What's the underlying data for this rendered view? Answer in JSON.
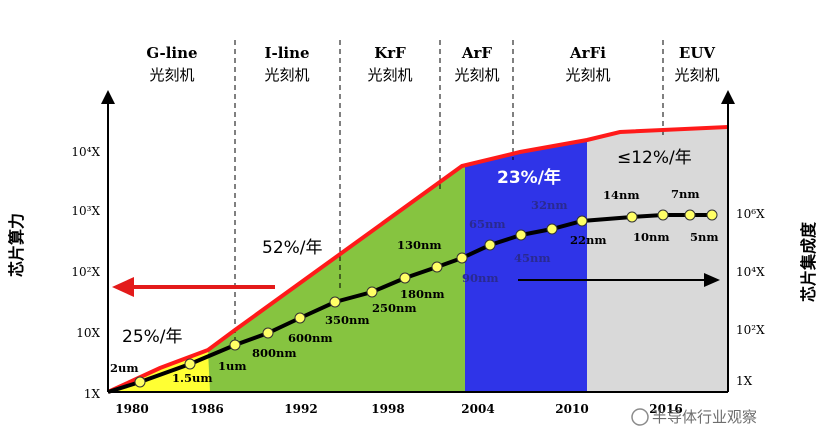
{
  "chart_data": {
    "type": "line",
    "eras": [
      {
        "name": "G-line",
        "sub": "光刻机"
      },
      {
        "name": "I-line",
        "sub": "光刻机"
      },
      {
        "name": "KrF",
        "sub": "光刻机"
      },
      {
        "name": "ArF",
        "sub": "光刻机"
      },
      {
        "name": "ArFi",
        "sub": "光刻机"
      },
      {
        "name": "EUV",
        "sub": "光刻机"
      }
    ],
    "x_ticks": [
      "1980",
      "1986",
      "1992",
      "1998",
      "2004",
      "2010",
      "2016"
    ],
    "left_y_ticks": [
      "1X",
      "10X",
      "10²X",
      "10³X",
      "10⁴X"
    ],
    "right_y_ticks": [
      "1X",
      "10²X",
      "10⁴X",
      "10⁶X"
    ],
    "left_ylabel": "芯片算力",
    "right_ylabel": "芯片集成度",
    "growth_rates": [
      "25%/年",
      "52%/年",
      "23%/年",
      "≤12%/年"
    ],
    "performance_curve": {
      "x": [
        1980,
        1986,
        2004,
        2010,
        2016,
        2018
      ],
      "log10_y": [
        0,
        0.3,
        3.35,
        3.6,
        3.85,
        3.9
      ]
    },
    "process_nodes": [
      {
        "label": "2um",
        "year": 1982,
        "log10_density": 0.12
      },
      {
        "label": "1.5um",
        "year": 1985,
        "log10_density": 0.3
      },
      {
        "label": "1um",
        "year": 1987,
        "log10_density": 0.55
      },
      {
        "label": "800nm",
        "year": 1989,
        "log10_density": 0.75
      },
      {
        "label": "600nm",
        "year": 1991,
        "log10_density": 0.95
      },
      {
        "label": "350nm",
        "year": 1994,
        "log10_density": 1.3
      },
      {
        "label": "250nm",
        "year": 1996,
        "log10_density": 1.5
      },
      {
        "label": "180nm",
        "year": 1998,
        "log10_density": 1.75
      },
      {
        "label": "130nm",
        "year": 2000,
        "log10_density": 2.05
      },
      {
        "label": "90nm",
        "year": 2002,
        "log10_density": 2.3
      },
      {
        "label": "65nm",
        "year": 2004,
        "log10_density": 2.55
      },
      {
        "label": "45nm",
        "year": 2006,
        "log10_density": 2.8
      },
      {
        "label": "32nm",
        "year": 2008,
        "log10_density": 3.0
      },
      {
        "label": "22nm",
        "year": 2011,
        "log10_density": 3.15
      },
      {
        "label": "14nm",
        "year": 2013,
        "log10_density": 3.3
      },
      {
        "label": "10nm",
        "year": 2016,
        "log10_density": 3.35
      },
      {
        "label": "7nm",
        "year": 2018,
        "log10_density": 3.38
      },
      {
        "label": "5nm",
        "year": 2020,
        "log10_density": 3.4
      }
    ],
    "colors": {
      "g_line_zone": "#ffff33",
      "i_line_zone": "#86c440",
      "arf_zone": "#2f34e8",
      "arfi_zone": "#d9d9d9",
      "envelope": "#ff1a1a",
      "nodes": "#ffff66"
    }
  },
  "watermark": "半导体行业观察"
}
